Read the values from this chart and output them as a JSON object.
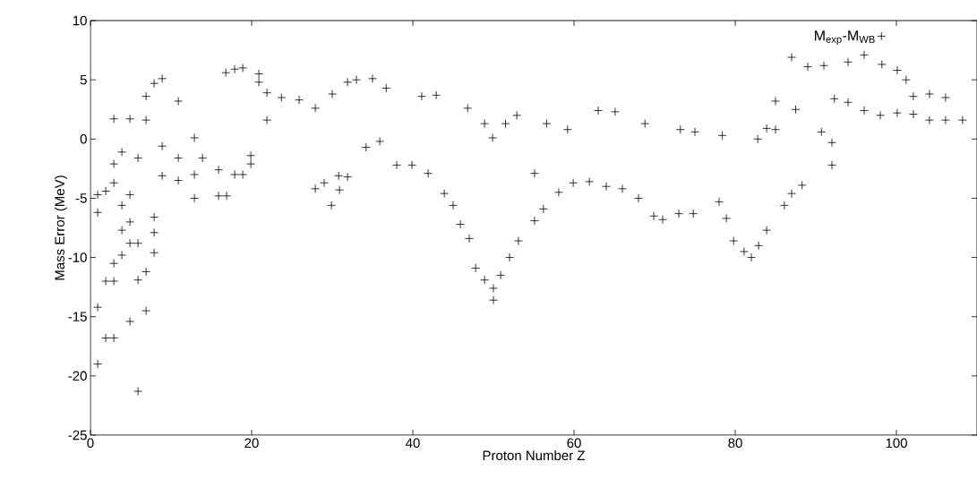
{
  "chart_data": {
    "type": "scatter",
    "xlabel": "Proton Number Z",
    "ylabel": "Mass Error (MeV)",
    "xlim": [
      0,
      110
    ],
    "ylim": [
      -25,
      10
    ],
    "xticks": [
      0,
      20,
      40,
      60,
      80,
      100
    ],
    "yticks": [
      -25,
      -20,
      -15,
      -10,
      -5,
      0,
      5,
      10
    ],
    "legend": "top right",
    "marker": "cross",
    "grid": false,
    "series": [
      {
        "name": "M$_{exp}$-M$_{WB}$",
        "color": "#000000",
        "x": [
          5.9,
          0.9,
          1.9,
          2.9,
          4.9,
          6.9,
          0.9,
          1.9,
          2.9,
          5.9,
          6.9,
          2.9,
          3.9,
          4.9,
          5.9,
          7.9,
          7.9,
          7.9,
          3.9,
          4.9,
          0.9,
          0.9,
          1.9,
          3.9,
          2.9,
          4.9,
          2.9,
          4.9,
          6.9,
          7.9,
          8.9,
          6.9,
          2.9,
          3.9,
          5.9,
          8.9,
          10.9,
          12.9,
          12.9,
          15.9,
          16.9,
          15.9,
          17.9,
          18.9,
          17.9,
          18.9,
          20.9,
          16.8,
          20.9,
          19.9,
          19.9,
          21.9,
          21.9,
          23.7,
          25.9,
          27.9,
          27.9,
          29,
          29.9,
          30.9,
          30.8,
          31.9,
          30,
          31.9,
          33,
          35,
          36.7,
          35.9,
          34.2,
          10.9,
          10.9,
          13.9,
          12.9,
          8.9,
          41.1,
          42.9,
          46.8,
          48.9,
          50,
          50,
          47.8,
          48.9,
          50.9,
          52,
          47,
          45.9,
          45,
          43.9,
          41.9,
          38,
          39.9,
          53.1,
          55.1,
          56.2,
          58.1,
          59.9,
          61.9,
          64,
          66,
          68,
          69.9,
          71,
          73,
          74.8,
          63,
          65.1,
          52.9,
          51.5,
          56.6,
          59.2,
          68.8,
          73.2,
          49.9,
          55.1,
          82,
          81.1,
          79.8,
          82.9,
          83.9,
          78.9,
          78,
          86.1,
          87,
          88.3,
          92,
          92,
          90.7,
          75,
          78.4,
          82.8,
          83.9,
          85,
          87,
          89,
          91,
          94,
          96,
          98.2,
          100.1,
          101.2,
          102.1,
          102.1,
          100.1,
          98,
          96,
          94,
          92.3,
          104.1,
          106.1,
          104.1,
          106.1,
          108.2,
          87.5,
          85
        ],
        "values": [
          -21.3,
          -19,
          -16.8,
          -16.8,
          -15.4,
          -14.5,
          -14.2,
          -12,
          -12,
          -11.9,
          -11.2,
          -10.5,
          -9.8,
          -8.8,
          -8.8,
          -9.6,
          -7.9,
          -6.6,
          -7.7,
          -7,
          -6.2,
          -4.7,
          -4.4,
          -5.6,
          -3.7,
          -4.7,
          1.7,
          1.7,
          1.6,
          4.7,
          5.1,
          3.6,
          -2.1,
          -1.1,
          -1.6,
          -3.1,
          -3.5,
          -5,
          -3,
          -4.8,
          -4.8,
          -2.6,
          -3,
          -3,
          5.9,
          6,
          5.5,
          5.6,
          4.8,
          -1.4,
          -2.1,
          3.9,
          1.6,
          3.5,
          3.3,
          2.6,
          -4.2,
          -3.7,
          -5.6,
          -4.3,
          -3.1,
          -3.2,
          3.8,
          4.8,
          5,
          5.1,
          4.3,
          -0.2,
          -0.7,
          3.2,
          -1.6,
          -1.6,
          0.1,
          -0.6,
          3.6,
          3.7,
          2.6,
          1.3,
          -13.6,
          -12.6,
          -10.9,
          -11.9,
          -11.5,
          -10,
          -8.4,
          -7.2,
          -5.6,
          -4.6,
          -2.9,
          -2.2,
          -2.2,
          -8.6,
          -6.9,
          -5.9,
          -4.5,
          -3.7,
          -3.6,
          -4,
          -4.2,
          -5,
          -6.5,
          -6.8,
          -6.3,
          -6.3,
          2.4,
          2.3,
          2,
          1.3,
          1.3,
          0.8,
          1.3,
          0.8,
          0.1,
          -2.9,
          -10,
          -9.5,
          -8.6,
          -9,
          -7.7,
          -6.7,
          -5.3,
          -5.6,
          -4.6,
          -3.9,
          -2.2,
          -0.3,
          0.6,
          0.6,
          0.3,
          0,
          0.9,
          3.2,
          6.9,
          6.1,
          6.2,
          6.5,
          7.1,
          6.3,
          5.8,
          5,
          3.6,
          2.1,
          2.2,
          2,
          2.4,
          3.1,
          3.4,
          3.8,
          3.5,
          1.6,
          1.6,
          1.6,
          2.5,
          0.8
        ]
      }
    ]
  }
}
